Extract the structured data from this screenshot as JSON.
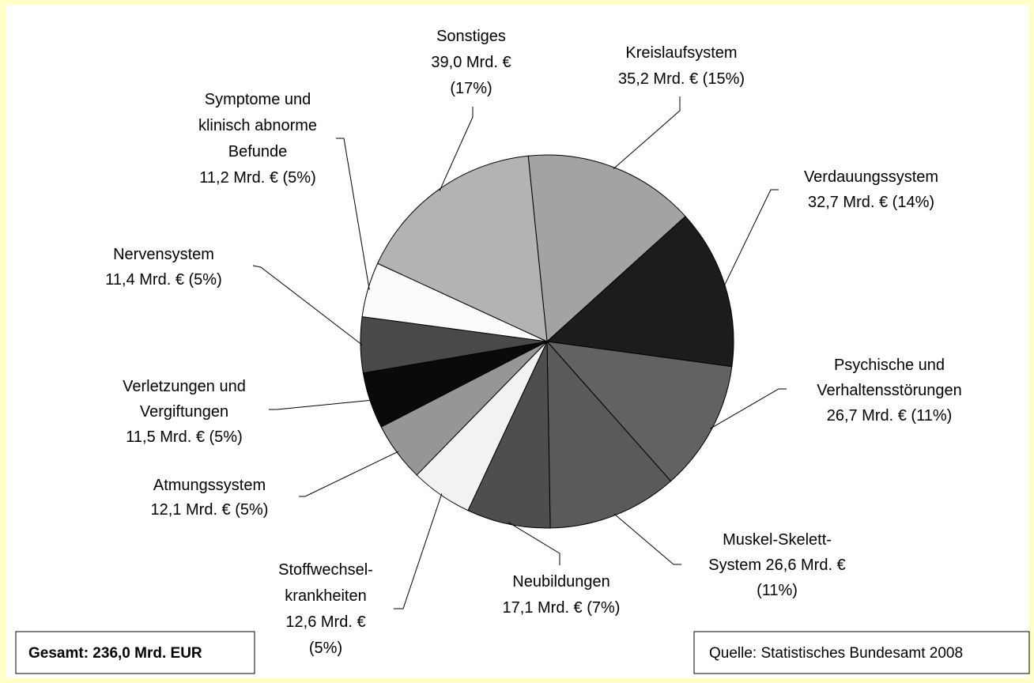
{
  "chart_data": {
    "type": "pie",
    "values": [
      35.2,
      32.7,
      26.7,
      26.6,
      17.1,
      12.6,
      12.1,
      11.5,
      11.4,
      11.2,
      39.0
    ],
    "labels": [
      [
        "Kreislaufsystem",
        "35,2 Mrd. € (15%)"
      ],
      [
        "Verdauungssystem",
        "32,7 Mrd. € (14%)"
      ],
      [
        "Psychische und",
        "Verhaltensstörungen",
        "26,7 Mrd. € (11%)"
      ],
      [
        "Muskel-Skelett-",
        "System 26,6 Mrd. €",
        "(11%)"
      ],
      [
        "Neubildungen",
        "17,1 Mrd. € (7%)"
      ],
      [
        "Stoffwechsel-",
        "krankheiten",
        "12,6 Mrd. €",
        "(5%)"
      ],
      [
        "Atmungssystem",
        "12,1 Mrd. € (5%)"
      ],
      [
        "Verletzungen und",
        "Vergiftungen",
        "11,5 Mrd. € (5%)"
      ],
      [
        "Nervensystem",
        "11,4 Mrd. € (5%)"
      ],
      [
        "Symptome und",
        "klinisch abnorme",
        "Befunde",
        "11,2 Mrd. € (5%)"
      ],
      [
        "Sonstiges",
        "39,0 Mrd. €",
        "(17%)"
      ]
    ],
    "colors": [
      "#a3a3a3",
      "#1c1c1c",
      "#626262",
      "#5a5a5a",
      "#4e4e4e",
      "#f2f2f2",
      "#969696",
      "#0a0a0a",
      "#494949",
      "#fbfbfb",
      "#b3b3b3"
    ],
    "total_note": "Gesamt: 236,0 Mrd. EUR",
    "source": "Quelle: Statistisches Bundesamt 2008"
  }
}
